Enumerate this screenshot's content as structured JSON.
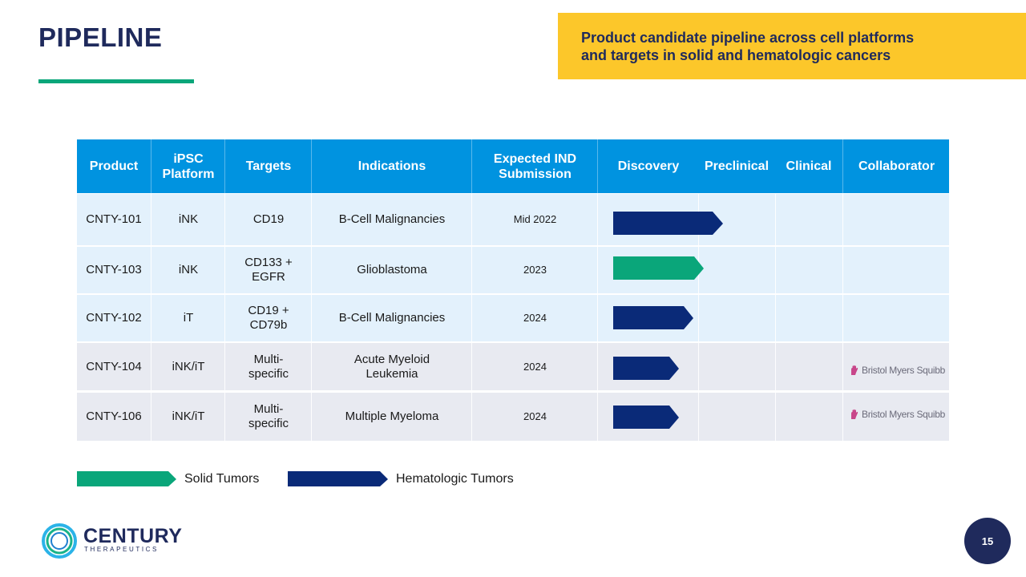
{
  "page_title": "PIPELINE",
  "callout": {
    "line1": "Product candidate pipeline across cell platforms",
    "line2": "and targets in solid and hematologic cancers"
  },
  "table": {
    "headers": {
      "product": "Product",
      "platform_l1": "iPSC",
      "platform_l2": "Platform",
      "targets": "Targets",
      "indications": "Indications",
      "ind_l1": "Expected IND",
      "ind_l2": "Submission",
      "discovery": "Discovery",
      "preclinical": "Preclinical",
      "clinical": "Clinical",
      "collaborator": "Collaborator"
    },
    "rows": [
      {
        "product": "CNTY-101",
        "platform": "iNK",
        "targets_l1": "CD19",
        "targets_l2": "",
        "ind_l1": "B-Cell Malignancies",
        "ind_l2": "",
        "ind_date": "Mid 2022",
        "tumor_type": "hematologic",
        "collaborator": ""
      },
      {
        "product": "CNTY-103",
        "platform": "iNK",
        "targets_l1": "CD133 +",
        "targets_l2": "EGFR",
        "ind_l1": "Glioblastoma",
        "ind_l2": "",
        "ind_date": "2023",
        "tumor_type": "solid",
        "collaborator": ""
      },
      {
        "product": "CNTY-102",
        "platform": "iT",
        "targets_l1": "CD19 +",
        "targets_l2": "CD79b",
        "ind_l1": "B-Cell Malignancies",
        "ind_l2": "",
        "ind_date": "2024",
        "tumor_type": "hematologic",
        "collaborator": ""
      },
      {
        "product": "CNTY-104",
        "platform": "iNK/iT",
        "targets_l1": "Multi-",
        "targets_l2": "specific",
        "ind_l1": "Acute Myeloid",
        "ind_l2": "Leukemia",
        "ind_date": "2024",
        "tumor_type": "hematologic",
        "collaborator": "Bristol Myers Squibb"
      },
      {
        "product": "CNTY-106",
        "platform": "iNK/iT",
        "targets_l1": "Multi-",
        "targets_l2": "specific",
        "ind_l1": "Multiple Myeloma",
        "ind_l2": "",
        "ind_date": "2024",
        "tumor_type": "hematologic",
        "collaborator": "Bristol Myers Squibb"
      }
    ]
  },
  "legend": {
    "solid": "Solid Tumors",
    "hematologic": "Hematologic Tumors"
  },
  "logo": {
    "name": "CENTURY",
    "subtitle": "THERAPEUTICS"
  },
  "page_number": "15",
  "colors": {
    "navy": "#1f2a5c",
    "solid_tumor": "#0aa67a",
    "hematologic_tumor": "#0a2a78",
    "header_blue": "#0093e0",
    "callout_yellow": "#fcc72a"
  }
}
